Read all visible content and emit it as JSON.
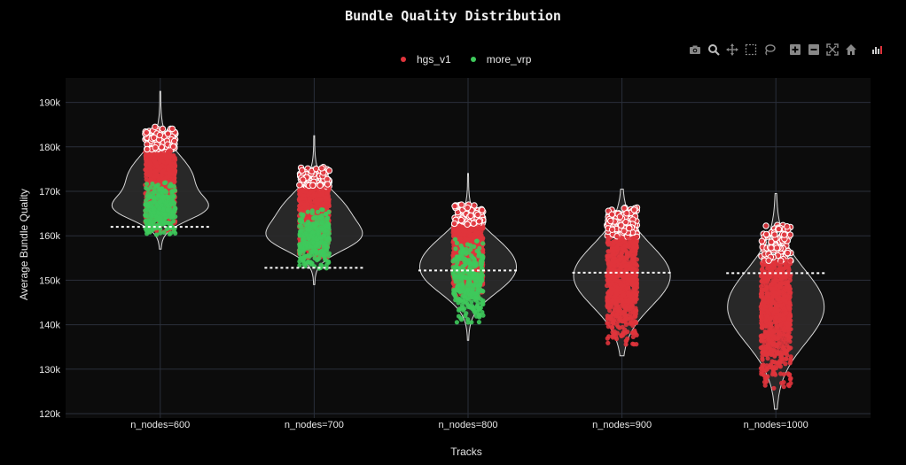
{
  "chart_data": {
    "type": "violin",
    "title": "Bundle Quality Distribution",
    "xlabel": "Tracks",
    "ylabel": "Average Bundle Quality",
    "ylim": [
      119000,
      195500
    ],
    "yticks": [
      {
        "value": 120000,
        "label": "120k"
      },
      {
        "value": 130000,
        "label": "130k"
      },
      {
        "value": 140000,
        "label": "140k"
      },
      {
        "value": 150000,
        "label": "150k"
      },
      {
        "value": 160000,
        "label": "160k"
      },
      {
        "value": 170000,
        "label": "170k"
      },
      {
        "value": 180000,
        "label": "180k"
      },
      {
        "value": 190000,
        "label": "190k"
      }
    ],
    "categories": [
      "n_nodes=600",
      "n_nodes=700",
      "n_nodes=800",
      "n_nodes=900",
      "n_nodes=1000"
    ],
    "grid": true,
    "legend_position": "top-center",
    "series": [
      {
        "name": "hgs_v1",
        "color": "#e0343c",
        "ranges": [
          [
            161000,
            184500
          ],
          [
            155000,
            175500
          ],
          [
            146000,
            167000
          ],
          [
            135500,
            166500
          ],
          [
            125500,
            162500
          ]
        ]
      },
      {
        "name": "more_vrp",
        "color": "#3ec95b",
        "ranges": [
          [
            160000,
            172000
          ],
          [
            152500,
            166000
          ],
          [
            140500,
            160000
          ],
          null,
          null
        ]
      }
    ],
    "violins": [
      {
        "category": "n_nodes=600",
        "min": 157000,
        "max": 192500,
        "median": 162000
      },
      {
        "category": "n_nodes=700",
        "min": 149000,
        "max": 182500,
        "median": 152800
      },
      {
        "category": "n_nodes=800",
        "min": 136500,
        "max": 174000,
        "median": 152200
      },
      {
        "category": "n_nodes=900",
        "min": 133000,
        "max": 170500,
        "median": 151700
      },
      {
        "category": "n_nodes=1000",
        "min": 121000,
        "max": 169500,
        "median": 151600
      }
    ]
  },
  "colors": {
    "background": "#000000",
    "plot_background": "#111111",
    "grid": "#2a2f3a",
    "violin_fill": "#2b2b2b",
    "violin_line": "#d8d8d8",
    "median_line": "#ffffff"
  },
  "modebar": {
    "icons": [
      "camera-icon",
      "zoom-icon",
      "pan-icon",
      "box-select-icon",
      "lasso-icon",
      "zoom-in-icon",
      "zoom-out-icon",
      "autoscale-icon",
      "reset-axes-icon",
      "plotly-logo-icon"
    ]
  }
}
